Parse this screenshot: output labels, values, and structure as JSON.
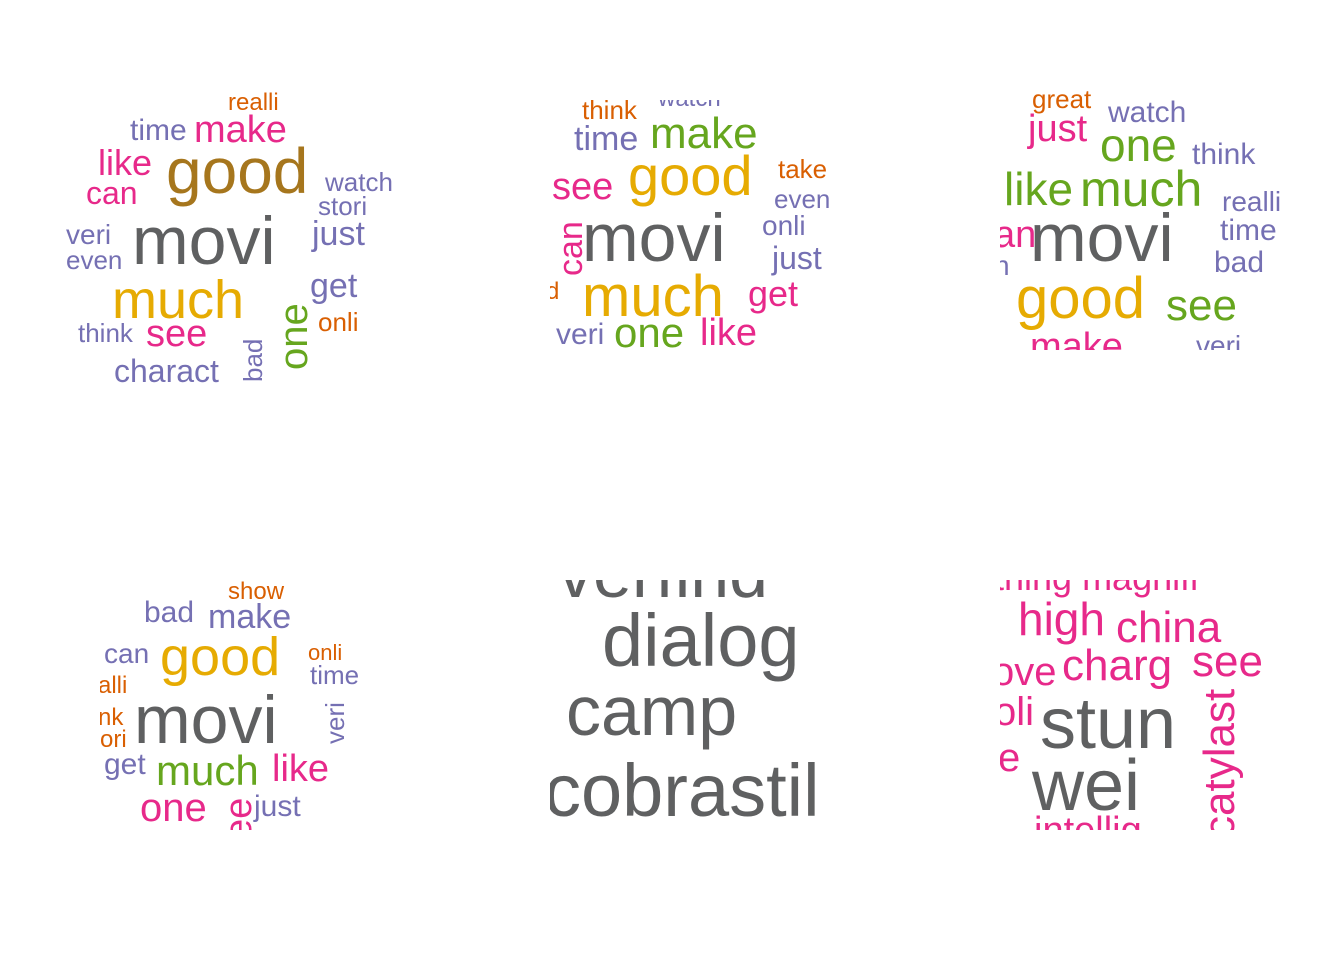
{
  "colors": {
    "gray": "#5f6061",
    "brown": "#a6761d",
    "gold": "#e6ab02",
    "pink": "#e7298a",
    "purple": "#7570b3",
    "orange": "#d95f02",
    "green": "#66a61e"
  },
  "clouds": [
    {
      "words": [
        {
          "text": "realli",
          "color": "orange",
          "rot": false
        },
        {
          "text": "time",
          "color": "purple",
          "rot": false
        },
        {
          "text": "make",
          "color": "pink",
          "rot": false
        },
        {
          "text": "like",
          "color": "pink",
          "rot": false
        },
        {
          "text": "good",
          "color": "brown",
          "rot": false
        },
        {
          "text": "can",
          "color": "pink",
          "rot": false
        },
        {
          "text": "watch",
          "color": "purple",
          "rot": false
        },
        {
          "text": "stori",
          "color": "purple",
          "rot": false
        },
        {
          "text": "veri",
          "color": "purple",
          "rot": false
        },
        {
          "text": "movi",
          "color": "gray",
          "rot": false
        },
        {
          "text": "just",
          "color": "purple",
          "rot": false
        },
        {
          "text": "even",
          "color": "purple",
          "rot": false
        },
        {
          "text": "get",
          "color": "purple",
          "rot": false
        },
        {
          "text": "much",
          "color": "gold",
          "rot": false
        },
        {
          "text": "onli",
          "color": "orange",
          "rot": false
        },
        {
          "text": "one",
          "color": "green",
          "rot": true
        },
        {
          "text": "think",
          "color": "purple",
          "rot": false
        },
        {
          "text": "see",
          "color": "pink",
          "rot": false
        },
        {
          "text": "bad",
          "color": "purple",
          "rot": true
        },
        {
          "text": "charact",
          "color": "purple",
          "rot": false
        }
      ]
    },
    {
      "words": [
        {
          "text": "think",
          "color": "orange",
          "rot": false
        },
        {
          "text": "watch",
          "color": "purple",
          "rot": false
        },
        {
          "text": "time",
          "color": "purple",
          "rot": false
        },
        {
          "text": "make",
          "color": "green",
          "rot": false
        },
        {
          "text": "take",
          "color": "orange",
          "rot": false
        },
        {
          "text": "see",
          "color": "pink",
          "rot": false
        },
        {
          "text": "good",
          "color": "gold",
          "rot": false
        },
        {
          "text": "even",
          "color": "purple",
          "rot": false
        },
        {
          "text": "can",
          "color": "pink",
          "rot": true
        },
        {
          "text": "movi",
          "color": "gray",
          "rot": false
        },
        {
          "text": "onli",
          "color": "purple",
          "rot": false
        },
        {
          "text": "just",
          "color": "purple",
          "rot": false
        },
        {
          "text": "d",
          "color": "orange",
          "rot": false
        },
        {
          "text": "much",
          "color": "gold",
          "rot": false
        },
        {
          "text": "get",
          "color": "pink",
          "rot": false
        },
        {
          "text": "veri",
          "color": "purple",
          "rot": false
        },
        {
          "text": "one",
          "color": "green",
          "rot": false
        },
        {
          "text": "like",
          "color": "pink",
          "rot": false
        }
      ]
    },
    {
      "words": [
        {
          "text": "great",
          "color": "orange",
          "rot": false
        },
        {
          "text": "watch",
          "color": "purple",
          "rot": false
        },
        {
          "text": "just",
          "color": "pink",
          "rot": false
        },
        {
          "text": "one",
          "color": "green",
          "rot": false
        },
        {
          "text": "think",
          "color": "purple",
          "rot": false
        },
        {
          "text": "like",
          "color": "green",
          "rot": false
        },
        {
          "text": "much",
          "color": "green",
          "rot": false
        },
        {
          "text": "realli",
          "color": "purple",
          "rot": false
        },
        {
          "text": "time",
          "color": "purple",
          "rot": false
        },
        {
          "text": "an",
          "color": "pink",
          "rot": false
        },
        {
          "text": "movi",
          "color": "gray",
          "rot": false
        },
        {
          "text": "bad",
          "color": "purple",
          "rot": false
        },
        {
          "text": "n",
          "color": "purple",
          "rot": false
        },
        {
          "text": "good",
          "color": "gold",
          "rot": false
        },
        {
          "text": "see",
          "color": "green",
          "rot": false
        },
        {
          "text": "make",
          "color": "pink",
          "rot": false
        },
        {
          "text": "veri",
          "color": "purple",
          "rot": false
        }
      ]
    },
    {
      "words": [
        {
          "text": "show",
          "color": "orange",
          "rot": false
        },
        {
          "text": "bad",
          "color": "purple",
          "rot": false
        },
        {
          "text": "make",
          "color": "purple",
          "rot": false
        },
        {
          "text": "can",
          "color": "purple",
          "rot": false
        },
        {
          "text": "good",
          "color": "gold",
          "rot": false
        },
        {
          "text": "onli",
          "color": "orange",
          "rot": false
        },
        {
          "text": "time",
          "color": "purple",
          "rot": false
        },
        {
          "text": "alli",
          "color": "orange",
          "rot": false
        },
        {
          "text": "veri",
          "color": "purple",
          "rot": true
        },
        {
          "text": "nk",
          "color": "orange",
          "rot": false
        },
        {
          "text": "movi",
          "color": "gray",
          "rot": false
        },
        {
          "text": "ori",
          "color": "orange",
          "rot": false
        },
        {
          "text": "get",
          "color": "purple",
          "rot": false
        },
        {
          "text": "much",
          "color": "green",
          "rot": false
        },
        {
          "text": "like",
          "color": "pink",
          "rot": false
        },
        {
          "text": "one",
          "color": "pink",
          "rot": false
        },
        {
          "text": "ee",
          "color": "pink",
          "rot": true
        },
        {
          "text": "just",
          "color": "purple",
          "rot": false
        }
      ]
    },
    {
      "words": [
        {
          "text": "verfind",
          "color": "gray",
          "rot": false
        },
        {
          "text": "dialog",
          "color": "gray",
          "rot": false
        },
        {
          "text": "camp",
          "color": "gray",
          "rot": false
        },
        {
          "text": "cobrastil",
          "color": "gray",
          "rot": false
        }
      ]
    },
    {
      "words": [
        {
          "text": "thing magnifi",
          "color": "pink",
          "rot": false
        },
        {
          "text": "high",
          "color": "pink",
          "rot": false
        },
        {
          "text": "china",
          "color": "pink",
          "rot": false
        },
        {
          "text": "ove",
          "color": "pink",
          "rot": false
        },
        {
          "text": "charg",
          "color": "pink",
          "rot": false
        },
        {
          "text": "see",
          "color": "pink",
          "rot": false
        },
        {
          "text": "oli",
          "color": "pink",
          "rot": false
        },
        {
          "text": "stun",
          "color": "gray",
          "rot": false
        },
        {
          "text": "catylast",
          "color": "pink",
          "rot": true
        },
        {
          "text": "e",
          "color": "pink",
          "rot": false
        },
        {
          "text": "wei",
          "color": "gray",
          "rot": false
        },
        {
          "text": "intellig",
          "color": "pink",
          "rot": false
        }
      ]
    }
  ]
}
